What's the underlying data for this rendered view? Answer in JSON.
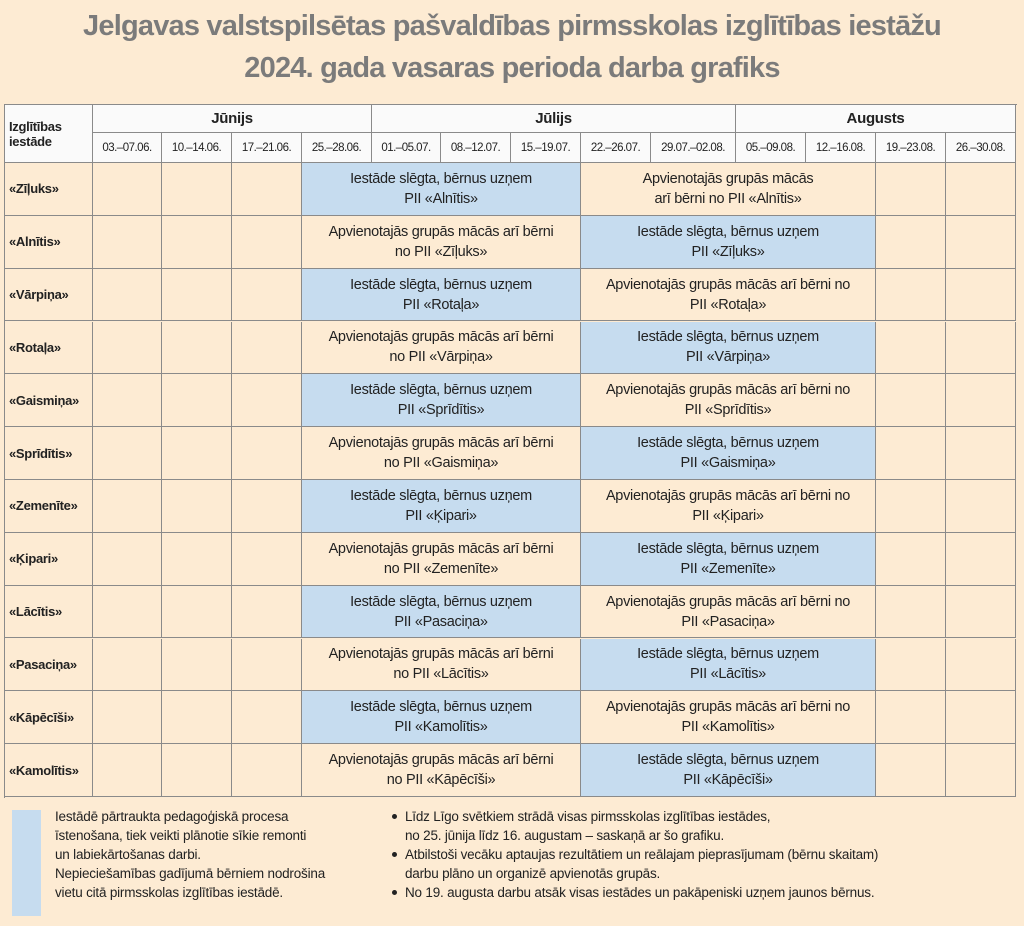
{
  "header": {
    "title": [
      "Jelgavas valstspilsētas pašvaldības pirmsskolas izglītības iestāžu",
      "2024. gada vasaras perioda darba grafiks"
    ]
  },
  "table": {
    "corner": [
      "Izglītības",
      "iestāde"
    ],
    "background": "#fdebd3",
    "months": [
      {
        "name": "Jūnijs",
        "weeks": [
          "03.–07.06.",
          "10.–14.06.",
          "17.–21.06.",
          "25.–28.06."
        ]
      },
      {
        "name": "Jūlijs",
        "weeks": [
          "01.–05.07.",
          "08.–12.07.",
          "15.–19.07.",
          "22.–26.07.",
          "29.07.–02.08."
        ]
      },
      {
        "name": "Augusts",
        "weeks": [
          "05.–09.08.",
          "12.–16.08.",
          "19.–23.08.",
          "26.–30.08."
        ]
      }
    ],
    "rows": [
      {
        "name": "«Zīļuks»",
        "blocks": [
          {
            "color": "#c6dcef",
            "lines": [
              "Iestāde slēgta, bērnus uzņem",
              "PII «Alnītis»"
            ]
          },
          {
            "color": "#fdebd3",
            "lines": [
              "Apvienotajās grupās mācās",
              "arī bērni no PII «Alnītis»"
            ]
          }
        ]
      },
      {
        "name": "«Alnītis»",
        "blocks": [
          {
            "color": "#fdebd3",
            "lines": [
              "Apvienotajās grupās mācās arī bērni",
              "no PII «Zīļuks»"
            ]
          },
          {
            "color": "#c6dcef",
            "lines": [
              "Iestāde slēgta, bērnus uzņem",
              "PII «Zīļuks»"
            ]
          }
        ]
      },
      {
        "name": "«Vārpiņa»",
        "blocks": [
          {
            "color": "#c6dcef",
            "lines": [
              "Iestāde slēgta, bērnus uzņem",
              "PII «Rotaļa»"
            ]
          },
          {
            "color": "#fdebd3",
            "lines": [
              "Apvienotajās grupās mācās arī bērni no",
              "PII «Rotaļa»"
            ]
          }
        ]
      },
      {
        "name": "«Rotaļa»",
        "blocks": [
          {
            "color": "#fdebd3",
            "lines": [
              "Apvienotajās grupās mācās arī bērni",
              "no PII «Vārpiņa»"
            ]
          },
          {
            "color": "#c6dcef",
            "lines": [
              "Iestāde slēgta, bērnus uzņem",
              "PII «Vārpiņa»"
            ]
          }
        ]
      },
      {
        "name": "«Gaismiņa»",
        "blocks": [
          {
            "color": "#c6dcef",
            "lines": [
              "Iestāde slēgta, bērnus uzņem",
              "PII «Sprīdītis»"
            ]
          },
          {
            "color": "#fdebd3",
            "lines": [
              "Apvienotajās grupās mācās arī bērni no",
              "PII «Sprīdītis»"
            ]
          }
        ]
      },
      {
        "name": "«Sprīdītis»",
        "blocks": [
          {
            "color": "#fdebd3",
            "lines": [
              "Apvienotajās grupās mācās arī bērni",
              "no PII «Gaismiņa»"
            ]
          },
          {
            "color": "#c6dcef",
            "lines": [
              "Iestāde slēgta, bērnus uzņem",
              "PII «Gaismiņa»"
            ]
          }
        ]
      },
      {
        "name": "«Zemenīte»",
        "blocks": [
          {
            "color": "#c6dcef",
            "lines": [
              "Iestāde slēgta, bērnus uzņem",
              "PII «Ķipari»"
            ]
          },
          {
            "color": "#fdebd3",
            "lines": [
              "Apvienotajās grupās mācās arī bērni no",
              "PII «Ķipari»"
            ]
          }
        ]
      },
      {
        "name": "«Ķipari»",
        "blocks": [
          {
            "color": "#fdebd3",
            "lines": [
              "Apvienotajās grupās mācās arī bērni",
              "no PII «Zemenīte»"
            ]
          },
          {
            "color": "#c6dcef",
            "lines": [
              "Iestāde slēgta, bērnus uzņem",
              "PII «Zemenīte»"
            ]
          }
        ]
      },
      {
        "name": "«Lācītis»",
        "blocks": [
          {
            "color": "#c6dcef",
            "lines": [
              "Iestāde slēgta, bērnus uzņem",
              "PII «Pasaciņa»"
            ]
          },
          {
            "color": "#fdebd3",
            "lines": [
              "Apvienotajās grupās mācās arī bērni no",
              "PII «Pasaciņa»"
            ]
          }
        ]
      },
      {
        "name": "«Pasaciņa»",
        "blocks": [
          {
            "color": "#fdebd3",
            "lines": [
              "Apvienotajās grupās mācās arī bērni",
              "no PII «Lācītis»"
            ]
          },
          {
            "color": "#c6dcef",
            "lines": [
              "Iestāde slēgta, bērnus uzņem",
              "PII «Lācītis»"
            ]
          }
        ]
      },
      {
        "name": "«Kāpēcīši»",
        "blocks": [
          {
            "color": "#c6dcef",
            "lines": [
              "Iestāde slēgta, bērnus uzņem",
              "PII «Kamolītis»"
            ]
          },
          {
            "color": "#fdebd3",
            "lines": [
              "Apvienotajās grupās mācās arī bērni no",
              "PII «Kamolītis»"
            ]
          }
        ]
      },
      {
        "name": "«Kamolītis»",
        "blocks": [
          {
            "color": "#fdebd3",
            "lines": [
              "Apvienotajās grupās mācās arī bērni",
              "no PII «Kāpēcīši»"
            ]
          },
          {
            "color": "#c6dcef",
            "lines": [
              "Iestāde slēgta, bērnus uzņem",
              "PII «Kāpēcīši»"
            ]
          }
        ]
      }
    ]
  },
  "legend": {
    "color": "#c6dcef",
    "lines": [
      "Iestādē pārtraukta pedagoģiskā procesa",
      "īstenošana, tiek veikti plānotie sīkie remonti",
      "un labiekārtošanas darbi.",
      "Nepieciešamības gadījumā bērniem nodrošina",
      "vietu citā pirmsskolas izglītības iestādē."
    ],
    "notes": [
      [
        "Līdz Līgo svētkiem strādā visas pirmsskolas izglītības iestādes,",
        "no 25. jūnija līdz 16. augustam – saskaņā ar šo grafiku."
      ],
      [
        "Atbilstoši vecāku aptaujas rezultātiem un reālajam pieprasījumam (bērnu skaitam)",
        "darbu plāno un organizē apvienotās grupās."
      ],
      [
        "No 19. augusta darbu atsāk visas iestādes un pakāpeniski uzņem jaunos bērnus."
      ]
    ]
  }
}
